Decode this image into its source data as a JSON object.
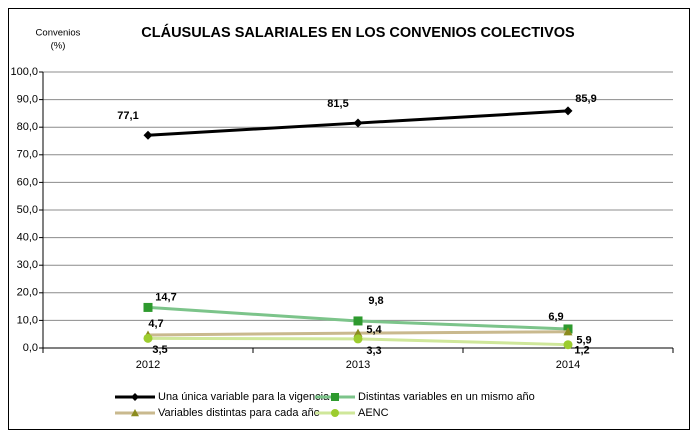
{
  "chart_data": {
    "type": "line",
    "title": "CLÁUSULAS SALARIALES EN LOS CONVENIOS COLECTIVOS",
    "y_label": "Convenios",
    "y_unit": "(%)",
    "categories": [
      "2012",
      "2013",
      "2014"
    ],
    "series": [
      {
        "name": "Una única variable para la vigencia",
        "color": "#000000",
        "line_color": "#000000",
        "marker": "diamond",
        "values": [
          77.1,
          81.5,
          85.9
        ],
        "value_labels": [
          "77,1",
          "81,5",
          "85,9"
        ]
      },
      {
        "name": "Distintas variables en un mismo año",
        "color": "#2e9a2e",
        "line_color": "#7cc48a",
        "marker": "square",
        "values": [
          14.7,
          9.8,
          6.9
        ],
        "value_labels": [
          "14,7",
          "9,8",
          "6,9"
        ]
      },
      {
        "name": "Variables distintas para cada año",
        "color": "#8c8c1e",
        "line_color": "#c9b98e",
        "marker": "triangle",
        "values": [
          4.7,
          5.4,
          5.9
        ],
        "value_labels": [
          "4,7",
          "5,4",
          "5,9"
        ]
      },
      {
        "name": "AENC",
        "color": "#9ccc2e",
        "line_color": "#cfe79a",
        "marker": "circle",
        "values": [
          3.5,
          3.3,
          1.2
        ],
        "value_labels": [
          "3,5",
          "3,3",
          "1,2"
        ]
      }
    ],
    "ylim": [
      0,
      100
    ],
    "yticks": [
      {
        "value": 0,
        "label": "0,0"
      },
      {
        "value": 10,
        "label": "10,0"
      },
      {
        "value": 20,
        "label": "20,0"
      },
      {
        "value": 30,
        "label": "30,0"
      },
      {
        "value": 40,
        "label": "40,0"
      },
      {
        "value": 50,
        "label": "50,0"
      },
      {
        "value": 60,
        "label": "60,0"
      },
      {
        "value": 70,
        "label": "70,0"
      },
      {
        "value": 80,
        "label": "80,0"
      },
      {
        "value": 90,
        "label": "90,0"
      },
      {
        "value": 100,
        "label": "100,0"
      }
    ],
    "grid": true,
    "legend": "bottom"
  }
}
